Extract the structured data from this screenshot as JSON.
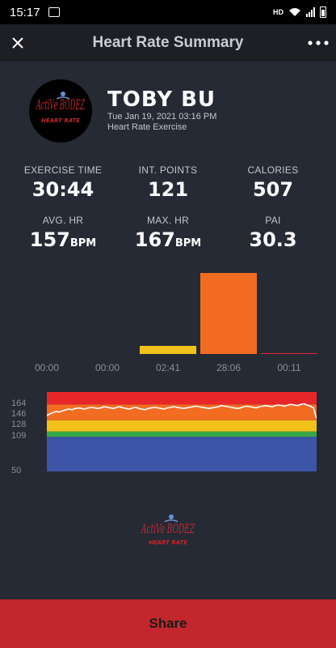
{
  "status_bar": {
    "time": "15:17",
    "network": "HD"
  },
  "header": {
    "title": "Heart Rate Summary"
  },
  "profile": {
    "logo_text": "ActiVe BODEZ",
    "logo_subtext": "HEART RATE",
    "name": "TOBY BU",
    "date": "Tue Jan 19, 2021 03:16 PM",
    "exercise_type": "Heart Rate Exercise"
  },
  "stats": {
    "exercise_time": {
      "label": "EXERCISE TIME",
      "value": "30:44"
    },
    "int_points": {
      "label": "INT. POINTS",
      "value": "121"
    },
    "calories": {
      "label": "CALORIES",
      "value": "507"
    },
    "avg_hr": {
      "label": "AVG. HR",
      "value": "157",
      "unit": "BPM"
    },
    "max_hr": {
      "label": "MAX. HR",
      "value": "167",
      "unit": "BPM"
    },
    "pai": {
      "label": "PAI",
      "value": "30.3"
    }
  },
  "zone_time": {
    "max_minutes": 28.1,
    "zones": [
      {
        "label": "00:00",
        "minutes": 0,
        "color": "#3d55a6"
      },
      {
        "label": "00:00",
        "minutes": 0,
        "color": "#38a845"
      },
      {
        "label": "02:41",
        "minutes": 2.68,
        "color": "#f2c21b"
      },
      {
        "label": "28:06",
        "minutes": 28.1,
        "color": "#f26c22"
      },
      {
        "label": "00:11",
        "minutes": 0.18,
        "color": "#e8262a"
      }
    ]
  },
  "hr_chart": {
    "ylim": [
      50,
      185
    ],
    "ticks": [
      "164",
      "146",
      "128",
      "109",
      "50"
    ],
    "tick_values": [
      164,
      146,
      128,
      109,
      50
    ],
    "bands": [
      {
        "from": 50,
        "to": 109,
        "color": "#3d55a6"
      },
      {
        "from": 109,
        "to": 118,
        "color": "#38a845"
      },
      {
        "from": 118,
        "to": 137,
        "color": "#f2c21b"
      },
      {
        "from": 137,
        "to": 164,
        "color": "#f26c22"
      },
      {
        "from": 164,
        "to": 185,
        "color": "#e8262a"
      }
    ],
    "hr_values": [
      145,
      148,
      150,
      152,
      151,
      153,
      155,
      156,
      155,
      157,
      158,
      157,
      156,
      158,
      159,
      158,
      157,
      158,
      160,
      159,
      158,
      157,
      159,
      160,
      158,
      157,
      156,
      158,
      159,
      157,
      156,
      155,
      157,
      158,
      159,
      158,
      157,
      156,
      158,
      159,
      160,
      159,
      158,
      157,
      158,
      159,
      160,
      161,
      160,
      159,
      158,
      157,
      158,
      159,
      160,
      162,
      161,
      160,
      159,
      158,
      157,
      158,
      160,
      161,
      160,
      159,
      158,
      160,
      161,
      162,
      161,
      160,
      162,
      163,
      162,
      161,
      163,
      164,
      163,
      162,
      164,
      165,
      163,
      161,
      158,
      140
    ]
  },
  "share": {
    "label": "Share"
  }
}
